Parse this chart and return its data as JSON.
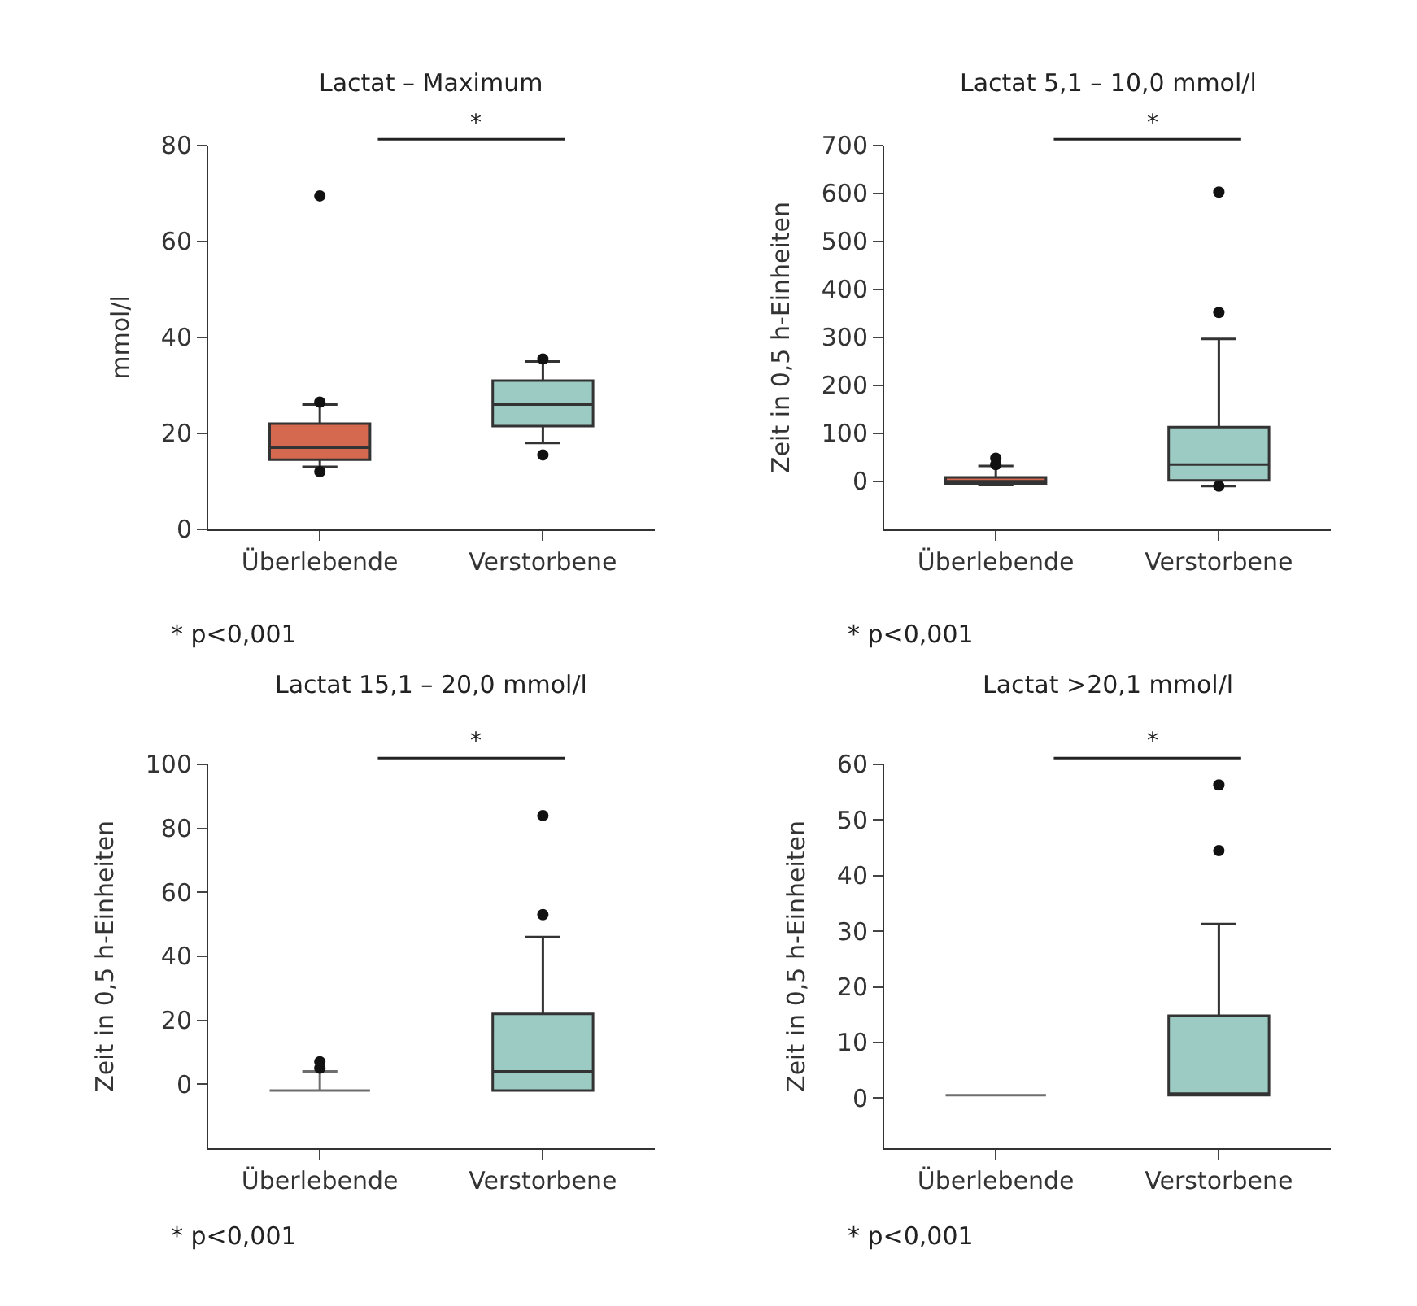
{
  "chart_data": [
    {
      "type": "box",
      "title": "Lactat – Maximum",
      "ylabel": "mmol/l",
      "categories": [
        "Überlebende",
        "Verstorbene"
      ],
      "colors": [
        "#d4694f",
        "#9ccbc4"
      ],
      "ylim": [
        0,
        80
      ],
      "yticks": [
        0,
        20,
        40,
        60,
        80
      ],
      "boxes": [
        {
          "low": 13,
          "q1": 14.5,
          "median": 17,
          "q3": 22,
          "high": 26,
          "outliers": [
            69.5,
            26.5,
            12
          ]
        },
        {
          "low": 18,
          "q1": 21.5,
          "median": 26,
          "q3": 31,
          "high": 35,
          "outliers": [
            35.5,
            15.5
          ]
        }
      ],
      "annotations": [
        "*",
        "* p<0,001"
      ]
    },
    {
      "type": "box",
      "title": "Lactat 5,1 – 10,0 mmol/l",
      "ylabel": "Zeit in 0,5 h-Einheiten",
      "categories": [
        "Überlebende",
        "Verstorbene"
      ],
      "colors": [
        "#d4694f",
        "#9ccbc4"
      ],
      "ylim": [
        -100,
        700
      ],
      "yticks": [
        0,
        100,
        200,
        300,
        400,
        500,
        600,
        700
      ],
      "boxes": [
        {
          "low": -8,
          "q1": -5,
          "median": 0,
          "q3": 8,
          "high": 32,
          "outliers": [
            48,
            35
          ]
        },
        {
          "low": -10,
          "q1": 2,
          "median": 35,
          "q3": 113,
          "high": 297,
          "outliers": [
            603,
            352,
            -10
          ]
        }
      ],
      "annotations": [
        "*",
        "* p<0,001"
      ]
    },
    {
      "type": "box",
      "title": "Lactat 15,1 – 20,0 mmol/l",
      "ylabel": "Zeit in 0,5 h-Einheiten",
      "categories": [
        "Überlebende",
        "Verstorbene"
      ],
      "colors": [
        "#6e6e6e",
        "#9ccbc4"
      ],
      "ylim": [
        -20,
        100
      ],
      "yticks": [
        0,
        20,
        40,
        60,
        80,
        100
      ],
      "boxes": [
        {
          "low": -2,
          "q1": -2,
          "median": -2,
          "q3": -2,
          "high": 4,
          "outliers": [
            7,
            5
          ]
        },
        {
          "low": -2,
          "q1": -2,
          "median": 4,
          "q3": 22,
          "high": 46,
          "outliers": [
            53,
            84
          ]
        }
      ],
      "annotations": [
        "*",
        "* p<0,001"
      ]
    },
    {
      "type": "box",
      "title": "Lactat >20,1 mmol/l",
      "ylabel": "Zeit in 0,5 h-Einheiten",
      "categories": [
        "Überlebende",
        "Verstorbene"
      ],
      "colors": [
        "#6e6e6e",
        "#9ccbc4"
      ],
      "ylim": [
        -9,
        60
      ],
      "yticks": [
        0,
        10,
        20,
        30,
        40,
        50,
        60
      ],
      "boxes": [
        {
          "low": 0.5,
          "q1": 0.5,
          "median": 0.5,
          "q3": 0.5,
          "high": 0.5
        },
        {
          "low": 0.5,
          "q1": 0.5,
          "median": 0.5,
          "q3": 14.8,
          "high": 31.3,
          "outliers": [
            44.5,
            56.3
          ]
        }
      ],
      "annotations": [
        "*",
        "* p<0,001"
      ]
    }
  ]
}
